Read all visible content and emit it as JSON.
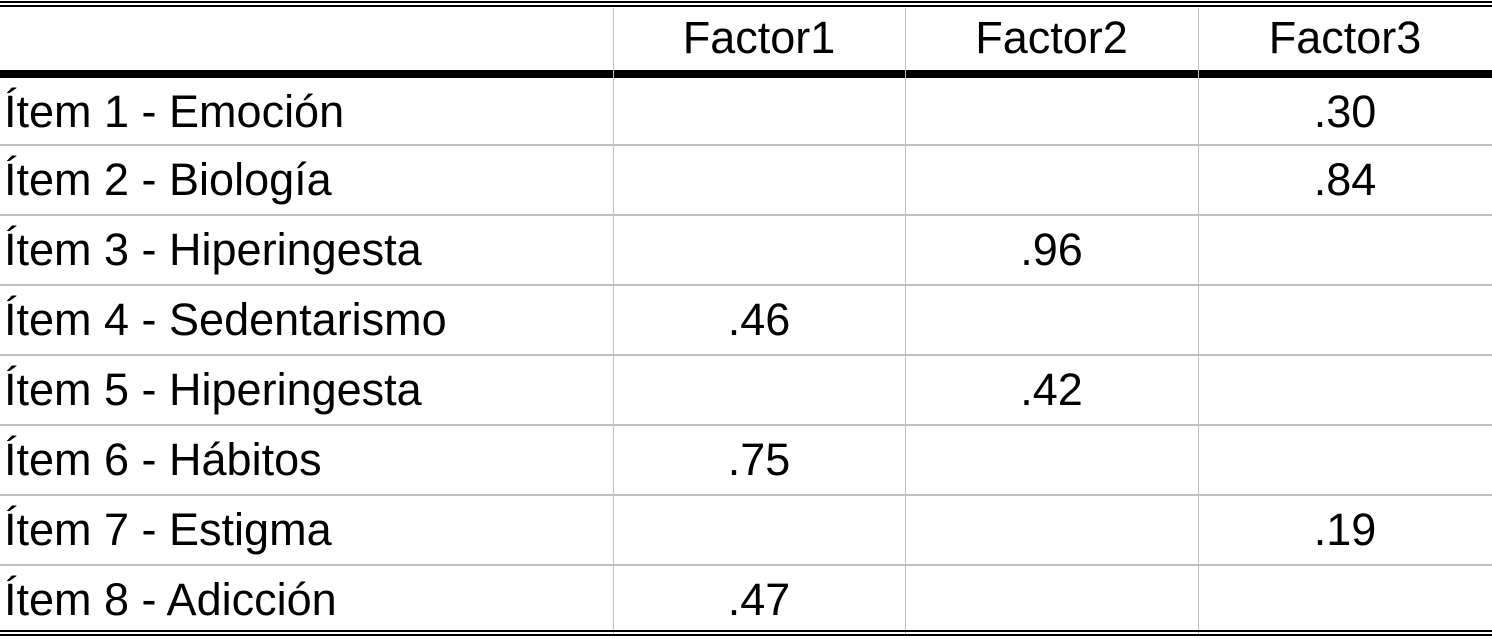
{
  "table": {
    "headers": [
      "",
      "Factor1",
      "Factor2",
      "Factor3"
    ],
    "rows": [
      {
        "label": "Ítem 1 - Emoción",
        "values": [
          "",
          "",
          ".30"
        ]
      },
      {
        "label": "Ítem 2 - Biología",
        "values": [
          "",
          "",
          ".84"
        ]
      },
      {
        "label": "Ítem 3 - Hiperingesta",
        "values": [
          "",
          ".96",
          ""
        ]
      },
      {
        "label": "Ítem 4 - Sedentarismo",
        "values": [
          ".46",
          "",
          ""
        ]
      },
      {
        "label": "Ítem 5 - Hiperingesta",
        "values": [
          "",
          ".42",
          ""
        ]
      },
      {
        "label": "Ítem 6 - Hábitos",
        "values": [
          ".75",
          "",
          ""
        ]
      },
      {
        "label": "Ítem 7 - Estigma",
        "values": [
          "",
          "",
          ".19"
        ]
      },
      {
        "label": "Ítem 8 - Adicción",
        "values": [
          ".47",
          "",
          ""
        ]
      }
    ]
  }
}
